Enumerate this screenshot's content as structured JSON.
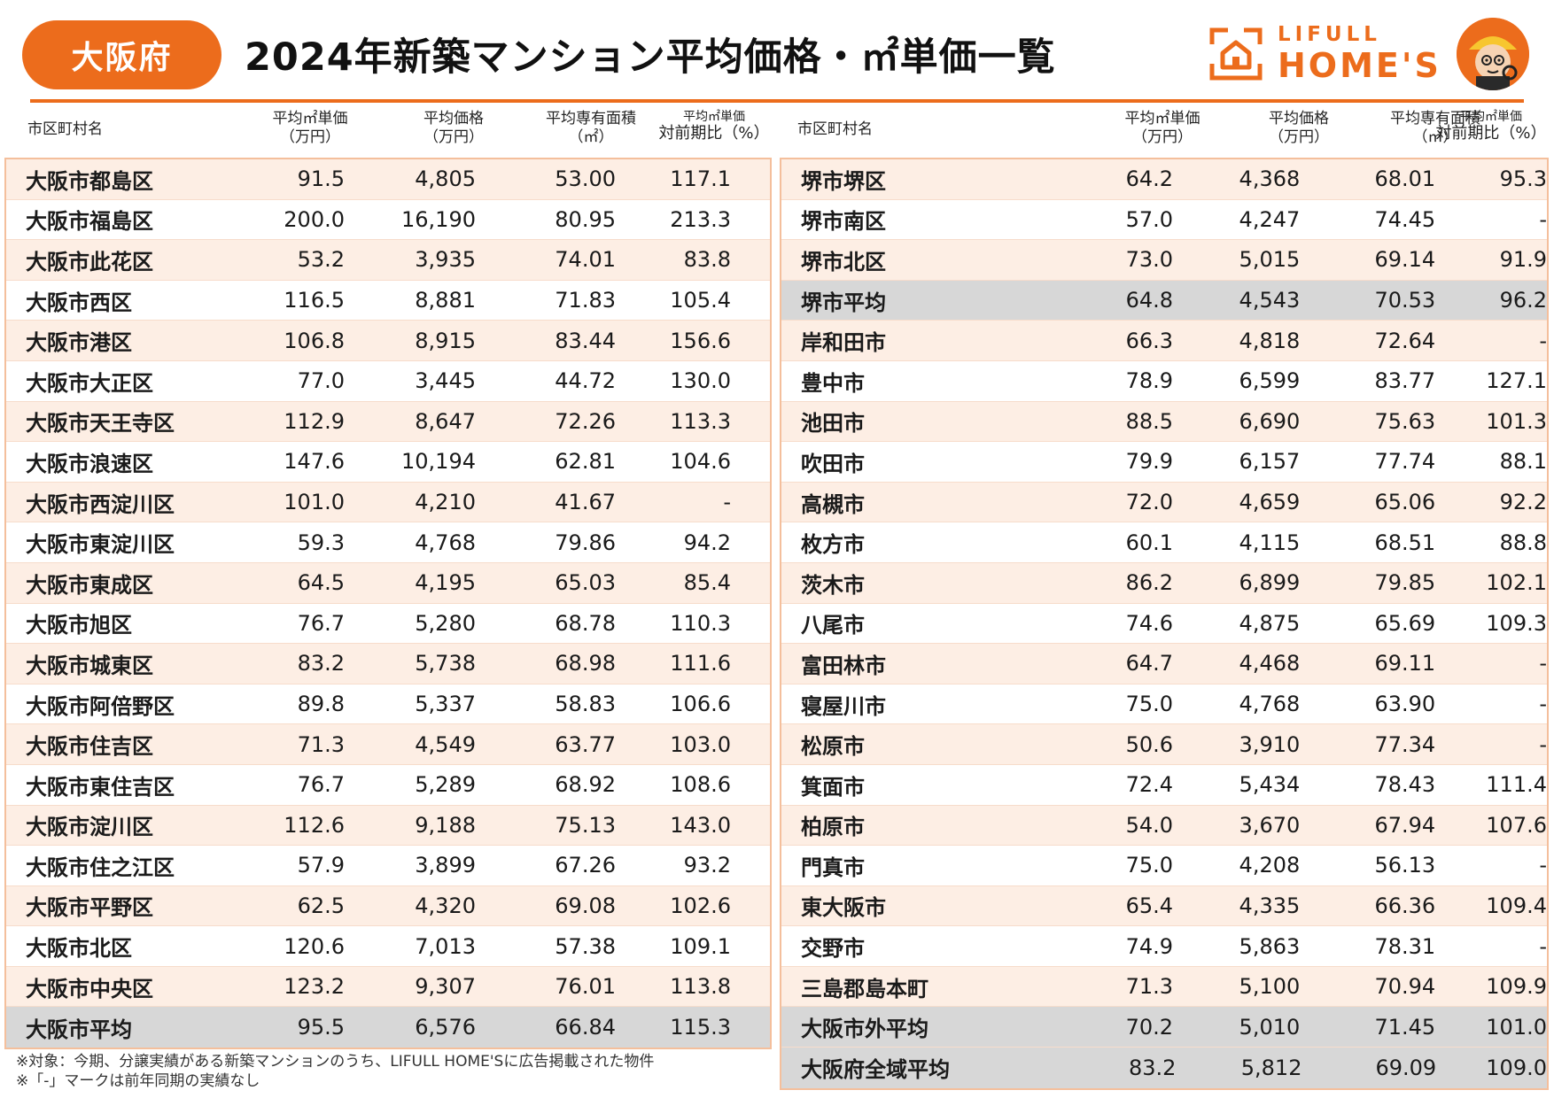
{
  "header": {
    "prefecture": "大阪府",
    "title": "2024年新築マンション平均価格・㎡単価一覧",
    "logo_top": "LIFULL",
    "logo_bottom": "HOME'S"
  },
  "columns": {
    "name": "市区町村名",
    "unit_price": [
      "平均㎡単価",
      "（万円）"
    ],
    "avg_price": [
      "平均価格",
      "（万円）"
    ],
    "area": [
      "平均専有面積",
      "（㎡）"
    ],
    "yoy": [
      "平均㎡単価",
      "対前期比（%）"
    ]
  },
  "left_rows": [
    {
      "name": "大阪市都島区",
      "unit_price": "91.5",
      "avg_price": "4,805",
      "area": "53.00",
      "yoy": "117.1"
    },
    {
      "name": "大阪市福島区",
      "unit_price": "200.0",
      "avg_price": "16,190",
      "area": "80.95",
      "yoy": "213.3"
    },
    {
      "name": "大阪市此花区",
      "unit_price": "53.2",
      "avg_price": "3,935",
      "area": "74.01",
      "yoy": "83.8"
    },
    {
      "name": "大阪市西区",
      "unit_price": "116.5",
      "avg_price": "8,881",
      "area": "71.83",
      "yoy": "105.4"
    },
    {
      "name": "大阪市港区",
      "unit_price": "106.8",
      "avg_price": "8,915",
      "area": "83.44",
      "yoy": "156.6"
    },
    {
      "name": "大阪市大正区",
      "unit_price": "77.0",
      "avg_price": "3,445",
      "area": "44.72",
      "yoy": "130.0"
    },
    {
      "name": "大阪市天王寺区",
      "unit_price": "112.9",
      "avg_price": "8,647",
      "area": "72.26",
      "yoy": "113.3"
    },
    {
      "name": "大阪市浪速区",
      "unit_price": "147.6",
      "avg_price": "10,194",
      "area": "62.81",
      "yoy": "104.6"
    },
    {
      "name": "大阪市西淀川区",
      "unit_price": "101.0",
      "avg_price": "4,210",
      "area": "41.67",
      "yoy": "-"
    },
    {
      "name": "大阪市東淀川区",
      "unit_price": "59.3",
      "avg_price": "4,768",
      "area": "79.86",
      "yoy": "94.2"
    },
    {
      "name": "大阪市東成区",
      "unit_price": "64.5",
      "avg_price": "4,195",
      "area": "65.03",
      "yoy": "85.4"
    },
    {
      "name": "大阪市旭区",
      "unit_price": "76.7",
      "avg_price": "5,280",
      "area": "68.78",
      "yoy": "110.3"
    },
    {
      "name": "大阪市城東区",
      "unit_price": "83.2",
      "avg_price": "5,738",
      "area": "68.98",
      "yoy": "111.6"
    },
    {
      "name": "大阪市阿倍野区",
      "unit_price": "89.8",
      "avg_price": "5,337",
      "area": "58.83",
      "yoy": "106.6"
    },
    {
      "name": "大阪市住吉区",
      "unit_price": "71.3",
      "avg_price": "4,549",
      "area": "63.77",
      "yoy": "103.0"
    },
    {
      "name": "大阪市東住吉区",
      "unit_price": "76.7",
      "avg_price": "5,289",
      "area": "68.92",
      "yoy": "108.6"
    },
    {
      "name": "大阪市淀川区",
      "unit_price": "112.6",
      "avg_price": "9,188",
      "area": "75.13",
      "yoy": "143.0"
    },
    {
      "name": "大阪市住之江区",
      "unit_price": "57.9",
      "avg_price": "3,899",
      "area": "67.26",
      "yoy": "93.2"
    },
    {
      "name": "大阪市平野区",
      "unit_price": "62.5",
      "avg_price": "4,320",
      "area": "69.08",
      "yoy": "102.6"
    },
    {
      "name": "大阪市北区",
      "unit_price": "120.6",
      "avg_price": "7,013",
      "area": "57.38",
      "yoy": "109.1"
    },
    {
      "name": "大阪市中央区",
      "unit_price": "123.2",
      "avg_price": "9,307",
      "area": "76.01",
      "yoy": "113.8"
    },
    {
      "name": "大阪市平均",
      "unit_price": "95.5",
      "avg_price": "6,576",
      "area": "66.84",
      "yoy": "115.3",
      "average": true
    }
  ],
  "right_rows": [
    {
      "name": "堺市堺区",
      "unit_price": "64.2",
      "avg_price": "4,368",
      "area": "68.01",
      "yoy": "95.3"
    },
    {
      "name": "堺市南区",
      "unit_price": "57.0",
      "avg_price": "4,247",
      "area": "74.45",
      "yoy": "-"
    },
    {
      "name": "堺市北区",
      "unit_price": "73.0",
      "avg_price": "5,015",
      "area": "69.14",
      "yoy": "91.9"
    },
    {
      "name": "堺市平均",
      "unit_price": "64.8",
      "avg_price": "4,543",
      "area": "70.53",
      "yoy": "96.2",
      "average": true
    },
    {
      "name": "岸和田市",
      "unit_price": "66.3",
      "avg_price": "4,818",
      "area": "72.64",
      "yoy": "-"
    },
    {
      "name": "豊中市",
      "unit_price": "78.9",
      "avg_price": "6,599",
      "area": "83.77",
      "yoy": "127.1"
    },
    {
      "name": "池田市",
      "unit_price": "88.5",
      "avg_price": "6,690",
      "area": "75.63",
      "yoy": "101.3"
    },
    {
      "name": "吹田市",
      "unit_price": "79.9",
      "avg_price": "6,157",
      "area": "77.74",
      "yoy": "88.1"
    },
    {
      "name": "高槻市",
      "unit_price": "72.0",
      "avg_price": "4,659",
      "area": "65.06",
      "yoy": "92.2"
    },
    {
      "name": "枚方市",
      "unit_price": "60.1",
      "avg_price": "4,115",
      "area": "68.51",
      "yoy": "88.8"
    },
    {
      "name": "茨木市",
      "unit_price": "86.2",
      "avg_price": "6,899",
      "area": "79.85",
      "yoy": "102.1"
    },
    {
      "name": "八尾市",
      "unit_price": "74.6",
      "avg_price": "4,875",
      "area": "65.69",
      "yoy": "109.3"
    },
    {
      "name": "富田林市",
      "unit_price": "64.7",
      "avg_price": "4,468",
      "area": "69.11",
      "yoy": "-"
    },
    {
      "name": "寝屋川市",
      "unit_price": "75.0",
      "avg_price": "4,768",
      "area": "63.90",
      "yoy": "-"
    },
    {
      "name": "松原市",
      "unit_price": "50.6",
      "avg_price": "3,910",
      "area": "77.34",
      "yoy": "-"
    },
    {
      "name": "箕面市",
      "unit_price": "72.4",
      "avg_price": "5,434",
      "area": "78.43",
      "yoy": "111.4"
    },
    {
      "name": "柏原市",
      "unit_price": "54.0",
      "avg_price": "3,670",
      "area": "67.94",
      "yoy": "107.6"
    },
    {
      "name": "門真市",
      "unit_price": "75.0",
      "avg_price": "4,208",
      "area": "56.13",
      "yoy": "-"
    },
    {
      "name": "東大阪市",
      "unit_price": "65.4",
      "avg_price": "4,335",
      "area": "66.36",
      "yoy": "109.4"
    },
    {
      "name": "交野市",
      "unit_price": "74.9",
      "avg_price": "5,863",
      "area": "78.31",
      "yoy": "-"
    },
    {
      "name": "三島郡島本町",
      "unit_price": "71.3",
      "avg_price": "5,100",
      "area": "70.94",
      "yoy": "109.9"
    },
    {
      "name": "大阪市外平均",
      "unit_price": "70.2",
      "avg_price": "5,010",
      "area": "71.45",
      "yoy": "101.0",
      "average": true
    },
    {
      "name": "大阪府全域平均",
      "unit_price": "83.2",
      "avg_price": "5,812",
      "area": "69.09",
      "yoy": "109.0",
      "average": true
    }
  ],
  "notes": [
    "※対象：今期、分譲実績がある新築マンションのうち、LIFULL HOME'Sに広告掲載された物件",
    "※「-」マークは前年同期の実績なし"
  ],
  "colors": {
    "accent": "#ec6c1c",
    "row_tint": "#fdeee4",
    "avg_row": "#d7d7d7",
    "border": "#f4bf9c"
  }
}
